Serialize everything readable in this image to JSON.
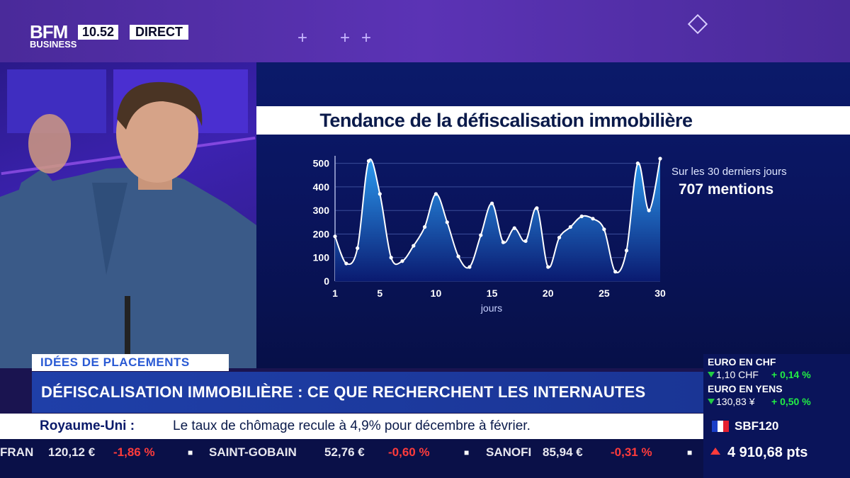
{
  "channel": {
    "logo_top": "BFM",
    "logo_bottom": "BUSINESS",
    "time": "10.52",
    "live_label": "DIRECT"
  },
  "chart_data": {
    "type": "area",
    "title": "Tendance de la défiscalisation immobilière",
    "xlabel": "jours",
    "ylabel": "",
    "x": [
      1,
      2,
      3,
      4,
      5,
      6,
      7,
      8,
      9,
      10,
      11,
      12,
      13,
      14,
      15,
      16,
      17,
      18,
      19,
      20,
      21,
      22,
      23,
      24,
      25,
      26,
      27,
      28,
      29,
      30
    ],
    "values": [
      190,
      75,
      140,
      510,
      370,
      100,
      85,
      150,
      230,
      370,
      250,
      105,
      60,
      195,
      330,
      165,
      225,
      170,
      310,
      60,
      185,
      230,
      275,
      265,
      220,
      40,
      130,
      500,
      300,
      520
    ],
    "x_ticks": [
      "1",
      "5",
      "10",
      "15",
      "20",
      "25",
      "30"
    ],
    "x_tick_values": [
      1,
      5,
      10,
      15,
      20,
      25,
      30
    ],
    "y_ticks": [
      "0",
      "100",
      "200",
      "300",
      "400",
      "500"
    ],
    "y_tick_values": [
      0,
      100,
      200,
      300,
      400,
      500
    ],
    "xlim": [
      1,
      30
    ],
    "ylim": [
      0,
      520
    ],
    "grid": true,
    "annotation_caption": "Sur les 30 derniers jours",
    "annotation_value": "707 mentions",
    "colors": {
      "fill_top": "#2b9af0",
      "fill_bottom": "#0a1a70",
      "line": "#ffffff",
      "points": "#ffffff"
    }
  },
  "lower_third": {
    "tag": "IDÉES DE PLACEMENTS",
    "headline": "DÉFISCALISATION IMMOBILIÈRE : CE QUE RECHERCHENT LES INTERNAUTES"
  },
  "markets": [
    {
      "name": "EURO EN CHF",
      "value": "1,10 CHF",
      "change": "+ 0,14 %"
    },
    {
      "name": "EURO EN YENS",
      "value": "130,83 ¥",
      "change": "+ 0,50 %"
    }
  ],
  "news": {
    "country": "Royaume-Uni :",
    "text": "Le taux de chômage recule à 4,9% pour décembre à février."
  },
  "index": {
    "name": "SBF120",
    "value": "4 910,68 pts"
  },
  "ticker": [
    {
      "name": "FRAN",
      "price": "120,12 €",
      "change": "-1,86 %"
    },
    {
      "name": "SAINT-GOBAIN",
      "price": "52,76 €",
      "change": "-0,60 %"
    },
    {
      "name": "SANOFI",
      "price": "85,94 €",
      "change": "-0,31 %"
    }
  ],
  "colors": {
    "up": "#22ee44",
    "down": "#ff3b3b",
    "brand": "#1f3fa8"
  }
}
